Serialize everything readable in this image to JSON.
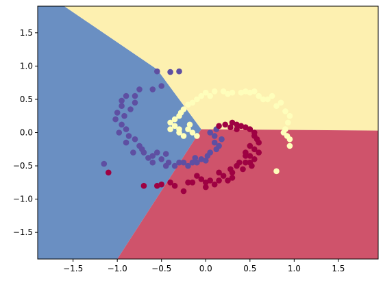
{
  "chart_data": {
    "type": "scatter",
    "title": "",
    "xlabel": "",
    "ylabel": "",
    "xlim": [
      -1.9,
      1.95
    ],
    "ylim": [
      -1.9,
      1.9
    ],
    "x_ticks": [
      -1.5,
      -1.0,
      -0.5,
      0.0,
      0.5,
      1.0,
      1.5
    ],
    "x_tick_labels": [
      "−1.5",
      "−1.0",
      "−0.5",
      "0.0",
      "0.5",
      "1.0",
      "1.5"
    ],
    "y_ticks": [
      1.5,
      1.0,
      0.5,
      0.0,
      -0.5,
      -1.0,
      -1.5
    ],
    "y_tick_labels": [
      "1.5",
      "1.0",
      "0.5",
      "0.0",
      "−0.5",
      "−1.0",
      "−1.5"
    ],
    "grid": false,
    "legend": "none",
    "decision_regions": [
      {
        "class": "blue",
        "color": "#6a8fc2",
        "polygon": [
          [
            -1.9,
            1.9
          ],
          [
            -1.6,
            1.9
          ],
          [
            -0.55,
            0.95
          ],
          [
            -0.05,
            0.05
          ],
          [
            -1.0,
            -1.9
          ],
          [
            -1.9,
            -1.9
          ]
        ]
      },
      {
        "class": "yellow",
        "color": "#fdf0b0",
        "polygon": [
          [
            -1.6,
            1.9
          ],
          [
            1.95,
            1.9
          ],
          [
            1.95,
            0.03
          ],
          [
            -0.05,
            0.05
          ],
          [
            -0.55,
            0.95
          ]
        ]
      },
      {
        "class": "red",
        "color": "#cf536b",
        "polygon": [
          [
            -0.05,
            0.05
          ],
          [
            1.95,
            0.03
          ],
          [
            1.95,
            -1.9
          ],
          [
            -1.0,
            -1.9
          ]
        ]
      }
    ],
    "series": [
      {
        "color": "#5e4fa2",
        "points": [
          [
            -0.55,
            0.92
          ],
          [
            -0.4,
            0.91
          ],
          [
            -0.5,
            0.7
          ],
          [
            -0.6,
            0.65
          ],
          [
            -0.75,
            0.65
          ],
          [
            -0.8,
            0.55
          ],
          [
            -0.9,
            0.55
          ],
          [
            -0.95,
            0.48
          ],
          [
            -0.8,
            0.45
          ],
          [
            -0.85,
            0.35
          ],
          [
            -0.95,
            0.4
          ],
          [
            -1.0,
            0.3
          ],
          [
            -0.92,
            0.25
          ],
          [
            -1.02,
            0.2
          ],
          [
            -0.95,
            0.12
          ],
          [
            -0.9,
            0.05
          ],
          [
            -0.98,
            0.0
          ],
          [
            -0.87,
            -0.05
          ],
          [
            -0.8,
            -0.1
          ],
          [
            -0.9,
            -0.15
          ],
          [
            -0.75,
            -0.2
          ],
          [
            -0.7,
            -0.3
          ],
          [
            -0.82,
            -0.3
          ],
          [
            -0.6,
            -0.35
          ],
          [
            -0.5,
            -0.4
          ],
          [
            -0.6,
            -0.45
          ],
          [
            -0.45,
            -0.5
          ],
          [
            -0.35,
            -0.5
          ],
          [
            -0.25,
            -0.45
          ],
          [
            -0.2,
            -0.5
          ],
          [
            -0.1,
            -0.45
          ],
          [
            -0.05,
            -0.4
          ],
          [
            0.02,
            -0.35
          ],
          [
            0.05,
            -0.3
          ],
          [
            0.12,
            -0.25
          ],
          [
            0.15,
            -0.2
          ],
          [
            0.1,
            -0.15
          ],
          [
            0.18,
            -0.1
          ],
          [
            0.1,
            -0.05
          ],
          [
            0.05,
            0.0
          ],
          [
            0.12,
            0.05
          ],
          [
            -0.55,
            -0.3
          ],
          [
            -0.65,
            -0.38
          ],
          [
            -0.72,
            -0.25
          ],
          [
            -0.45,
            -0.32
          ],
          [
            -0.3,
            -0.45
          ],
          [
            -0.42,
            -0.45
          ],
          [
            0.0,
            -0.42
          ],
          [
            -0.12,
            -0.38
          ],
          [
            -0.15,
            -0.45
          ],
          [
            -1.15,
            -0.47
          ],
          [
            -0.3,
            0.92
          ]
        ]
      },
      {
        "color": "#9e0142",
        "points": [
          [
            -1.1,
            -0.6
          ],
          [
            -0.7,
            -0.8
          ],
          [
            -0.55,
            -0.8
          ],
          [
            -0.5,
            -0.78
          ],
          [
            -0.35,
            -0.8
          ],
          [
            -0.25,
            -0.88
          ],
          [
            -0.15,
            -0.75
          ],
          [
            -0.05,
            -0.7
          ],
          [
            0.0,
            -0.82
          ],
          [
            0.1,
            -0.78
          ],
          [
            0.15,
            -0.72
          ],
          [
            0.25,
            -0.72
          ],
          [
            0.2,
            -0.65
          ],
          [
            0.3,
            -0.6
          ],
          [
            0.35,
            -0.5
          ],
          [
            0.42,
            -0.55
          ],
          [
            0.45,
            -0.45
          ],
          [
            0.5,
            -0.45
          ],
          [
            0.55,
            -0.4
          ],
          [
            0.5,
            -0.35
          ],
          [
            0.6,
            -0.3
          ],
          [
            0.55,
            -0.25
          ],
          [
            0.6,
            -0.15
          ],
          [
            0.55,
            -0.05
          ],
          [
            0.5,
            0.05
          ],
          [
            0.45,
            0.08
          ],
          [
            0.4,
            0.1
          ],
          [
            0.35,
            0.12
          ],
          [
            0.3,
            0.15
          ],
          [
            0.22,
            0.12
          ],
          [
            0.15,
            0.1
          ],
          [
            0.55,
            0.0
          ],
          [
            0.58,
            -0.1
          ],
          [
            0.5,
            -0.2
          ],
          [
            0.45,
            -0.3
          ],
          [
            0.38,
            -0.45
          ],
          [
            0.28,
            -0.55
          ],
          [
            0.05,
            -0.72
          ],
          [
            -0.1,
            -0.65
          ],
          [
            -0.2,
            -0.75
          ],
          [
            0.15,
            -0.6
          ],
          [
            0.3,
            -0.68
          ],
          [
            0.45,
            -0.35
          ],
          [
            0.35,
            0.05
          ],
          [
            0.28,
            0.08
          ],
          [
            -0.4,
            -0.75
          ],
          [
            0.0,
            -0.75
          ],
          [
            0.52,
            -0.5
          ]
        ]
      },
      {
        "color": "#fefebb",
        "points": [
          [
            -0.25,
            0.35
          ],
          [
            -0.3,
            0.25
          ],
          [
            -0.35,
            0.2
          ],
          [
            -0.4,
            0.15
          ],
          [
            -0.35,
            0.1
          ],
          [
            -0.4,
            0.05
          ],
          [
            -0.3,
            0.0
          ],
          [
            -0.2,
            0.05
          ],
          [
            -0.25,
            -0.05
          ],
          [
            -0.15,
            0.0
          ],
          [
            -0.1,
            -0.05
          ],
          [
            -0.18,
            0.12
          ],
          [
            -0.28,
            0.3
          ],
          [
            -0.2,
            0.42
          ],
          [
            -0.1,
            0.5
          ],
          [
            -0.05,
            0.55
          ],
          [
            0.0,
            0.6
          ],
          [
            0.1,
            0.62
          ],
          [
            0.2,
            0.62
          ],
          [
            0.25,
            0.58
          ],
          [
            0.3,
            0.6
          ],
          [
            0.4,
            0.6
          ],
          [
            0.45,
            0.62
          ],
          [
            0.5,
            0.6
          ],
          [
            0.55,
            0.62
          ],
          [
            0.6,
            0.55
          ],
          [
            0.7,
            0.5
          ],
          [
            0.75,
            0.55
          ],
          [
            0.85,
            0.45
          ],
          [
            0.8,
            0.4
          ],
          [
            0.9,
            0.32
          ],
          [
            0.95,
            0.25
          ],
          [
            0.93,
            0.15
          ],
          [
            0.9,
            0.05
          ],
          [
            0.88,
            0.0
          ],
          [
            0.92,
            -0.05
          ],
          [
            0.95,
            -0.1
          ],
          [
            0.95,
            -0.2
          ],
          [
            0.8,
            -0.58
          ],
          [
            -0.15,
            0.45
          ],
          [
            0.05,
            0.55
          ],
          [
            0.65,
            0.5
          ],
          [
            -0.3,
            0.05
          ]
        ]
      }
    ]
  }
}
